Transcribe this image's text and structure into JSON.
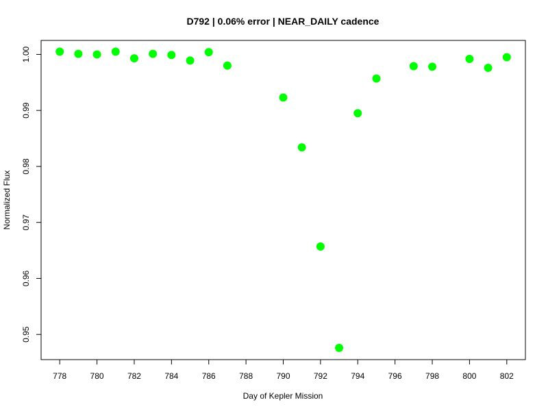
{
  "chart_data": {
    "type": "scatter",
    "title": "D792 | 0.06% error | NEAR_DAILY cadence",
    "xlabel": "Day of Kepler Mission",
    "ylabel": "Normalized Flux",
    "xlim": [
      777,
      803
    ],
    "ylim": [
      0.9455,
      1.0025
    ],
    "x_ticks": [
      778,
      780,
      782,
      784,
      786,
      788,
      790,
      792,
      794,
      796,
      798,
      800,
      802
    ],
    "x_tick_labels": [
      "778",
      "780",
      "782",
      "784",
      "786",
      "788",
      "790",
      "792",
      "794",
      "796",
      "798",
      "800",
      "802"
    ],
    "y_ticks": [
      0.95,
      0.96,
      0.97,
      0.98,
      0.99,
      1.0
    ],
    "y_tick_labels": [
      "0.95",
      "0.96",
      "0.97",
      "0.98",
      "0.99",
      "1.00"
    ],
    "grid": false,
    "marker_color": "#00ff00",
    "series": [
      {
        "points": [
          {
            "x": 778,
            "y": 1.0005
          },
          {
            "x": 779,
            "y": 1.0001
          },
          {
            "x": 780,
            "y": 1.0
          },
          {
            "x": 781,
            "y": 1.0005
          },
          {
            "x": 782,
            "y": 0.9993
          },
          {
            "x": 783,
            "y": 1.0001
          },
          {
            "x": 784,
            "y": 0.9999
          },
          {
            "x": 785,
            "y": 0.9989
          },
          {
            "x": 786,
            "y": 1.0004
          },
          {
            "x": 787,
            "y": 0.998
          },
          {
            "x": 790,
            "y": 0.9923
          },
          {
            "x": 791,
            "y": 0.9834
          },
          {
            "x": 792,
            "y": 0.9657
          },
          {
            "x": 793,
            "y": 0.9476
          },
          {
            "x": 794,
            "y": 0.9895
          },
          {
            "x": 795,
            "y": 0.9957
          },
          {
            "x": 797,
            "y": 0.9979
          },
          {
            "x": 798,
            "y": 0.9978
          },
          {
            "x": 800,
            "y": 0.9992
          },
          {
            "x": 801,
            "y": 0.9976
          },
          {
            "x": 802,
            "y": 0.9995
          }
        ]
      }
    ]
  }
}
